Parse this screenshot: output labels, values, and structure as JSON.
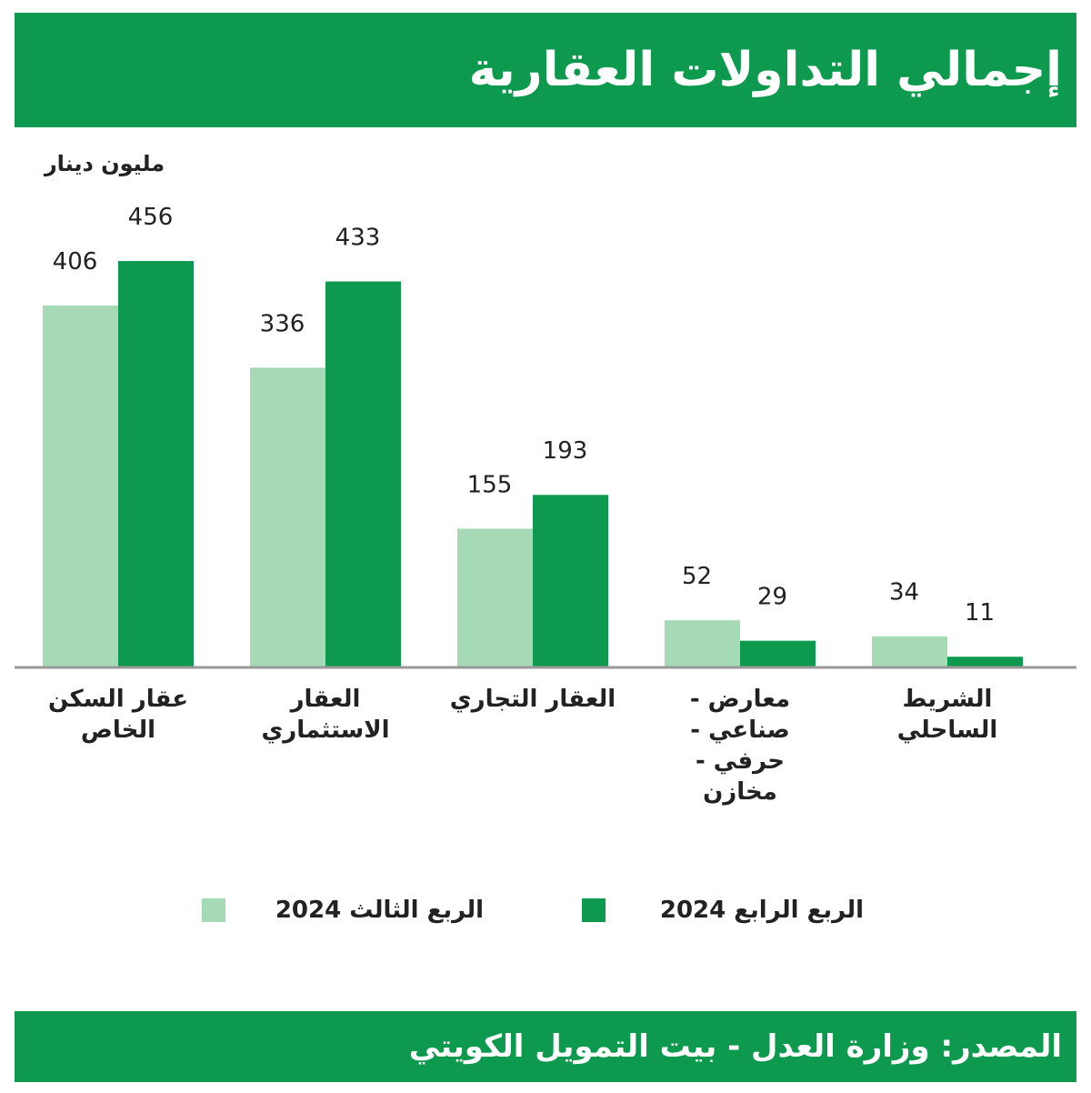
{
  "chart_data": {
    "type": "bar",
    "title": "إجمالي التداولات العقارية",
    "unit": "مليون دينار",
    "categories": [
      "عقار السكن الخاص",
      "العقار الاستثماري",
      "العقار التجاري",
      "معارض - صناعي - حرفي - مخازن",
      "الشريط الساحلي"
    ],
    "series": [
      {
        "name": "الربع الثالث 2024",
        "color": "#a6d9b6",
        "values": [
          406,
          336,
          155,
          52,
          34
        ]
      },
      {
        "name": "الربع الرابع 2024",
        "color": "#0e9a4e",
        "values": [
          456,
          433,
          193,
          29,
          11
        ]
      }
    ],
    "source": "المصدر: وزارة العدل - بيت التمويل الكويتي"
  }
}
